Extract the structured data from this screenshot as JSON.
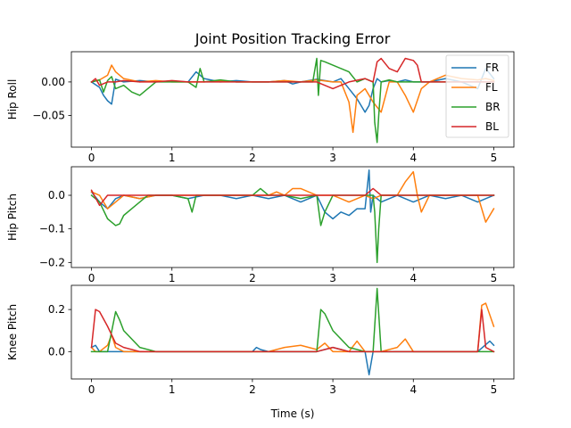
{
  "chart_data": {
    "type": "line",
    "title": "Joint Position Tracking Error",
    "xlabel": "Time (s)",
    "xlim": [
      -0.25,
      5.25
    ],
    "xticks": [
      0,
      1,
      2,
      3,
      4,
      5
    ],
    "legend_position": "top-right",
    "grid": false,
    "series_styles": [
      {
        "name": "FR",
        "color": "#1f77b4"
      },
      {
        "name": "FL",
        "color": "#ff7f0e"
      },
      {
        "name": "BR",
        "color": "#2ca02c"
      },
      {
        "name": "BL",
        "color": "#d62728"
      }
    ],
    "panels": [
      {
        "ylabel": "Hip Roll",
        "ylim": [
          -0.097,
          0.045
        ],
        "yticks": [
          0.0,
          -0.05
        ],
        "ytick_labels": [
          "0.00",
          "−0.05"
        ],
        "show_legend": true,
        "series": [
          {
            "name": "FR",
            "x": [
              0,
              0.1,
              0.15,
              0.2,
              0.25,
              0.3,
              0.4,
              0.6,
              0.8,
              1.0,
              1.2,
              1.3,
              1.4,
              1.6,
              1.8,
              2.0,
              2.2,
              2.4,
              2.5,
              2.6,
              2.8,
              3.0,
              3.1,
              3.2,
              3.3,
              3.35,
              3.4,
              3.45,
              3.5,
              3.55,
              3.6,
              3.7,
              3.8,
              3.9,
              4.0,
              4.2,
              4.4,
              4.6,
              4.8,
              4.9,
              5.0
            ],
            "y": [
              0.0,
              -0.008,
              -0.02,
              -0.028,
              -0.033,
              0.004,
              0.0,
              0.002,
              0.0,
              0.001,
              0.0,
              0.015,
              0.005,
              0.0,
              0.002,
              0.0,
              0.0,
              0.002,
              -0.003,
              0.0,
              0.004,
              0.0,
              0.005,
              -0.01,
              -0.025,
              -0.035,
              -0.045,
              -0.035,
              -0.01,
              0.005,
              0.0,
              0.002,
              0.0,
              0.003,
              0.0,
              0.0,
              0.005,
              0.0,
              -0.01,
              0.02,
              0.005
            ]
          },
          {
            "name": "FL",
            "x": [
              0,
              0.1,
              0.2,
              0.25,
              0.3,
              0.4,
              0.6,
              0.8,
              1.0,
              1.2,
              1.4,
              1.6,
              1.8,
              2.0,
              2.2,
              2.4,
              2.6,
              2.8,
              3.0,
              3.1,
              3.2,
              3.25,
              3.3,
              3.4,
              3.5,
              3.6,
              3.7,
              3.8,
              3.9,
              4.0,
              4.1,
              4.2,
              4.4,
              4.6,
              4.8,
              4.9,
              5.0
            ],
            "y": [
              0.0,
              0.003,
              0.01,
              0.025,
              0.015,
              0.005,
              0.0,
              0.002,
              0.0,
              0.0,
              0.0,
              0.002,
              0.0,
              0.0,
              0.0,
              0.002,
              0.0,
              0.003,
              0.0,
              0.0,
              -0.03,
              -0.075,
              -0.02,
              -0.01,
              -0.03,
              -0.045,
              0.0,
              0.0,
              -0.02,
              -0.045,
              -0.01,
              0.0,
              0.01,
              0.005,
              0.003,
              0.005,
              0.002
            ]
          },
          {
            "name": "BR",
            "x": [
              0,
              0.1,
              0.15,
              0.2,
              0.25,
              0.3,
              0.4,
              0.5,
              0.6,
              0.8,
              1.0,
              1.2,
              1.3,
              1.35,
              1.4,
              1.6,
              1.8,
              2.0,
              2.2,
              2.4,
              2.6,
              2.75,
              2.8,
              2.82,
              2.85,
              2.9,
              3.0,
              3.1,
              3.2,
              3.3,
              3.4,
              3.5,
              3.52,
              3.55,
              3.57,
              3.6,
              3.7,
              3.8,
              4.0,
              4.2,
              4.4,
              4.6,
              4.8,
              5.0
            ],
            "y": [
              0.0,
              0.003,
              -0.015,
              0.002,
              0.008,
              -0.01,
              -0.005,
              -0.015,
              -0.02,
              0.0,
              0.0,
              0.0,
              -0.008,
              0.02,
              0.0,
              0.003,
              0.0,
              0.0,
              0.0,
              0.0,
              0.0,
              0.0,
              0.035,
              -0.02,
              0.032,
              0.03,
              0.025,
              0.02,
              0.015,
              0.0,
              0.005,
              0.0,
              -0.06,
              -0.09,
              -0.05,
              0.0,
              0.003,
              0.0,
              0.0,
              0.0,
              0.0,
              0.0,
              0.0,
              0.0
            ]
          },
          {
            "name": "BL",
            "x": [
              0,
              0.05,
              0.1,
              0.2,
              0.3,
              0.4,
              0.6,
              0.8,
              1.0,
              1.2,
              1.4,
              1.6,
              1.8,
              2.0,
              2.2,
              2.4,
              2.6,
              2.8,
              3.0,
              3.2,
              3.4,
              3.5,
              3.55,
              3.6,
              3.7,
              3.8,
              3.9,
              4.0,
              4.05,
              4.1,
              4.2,
              4.4,
              4.6,
              4.8,
              5.0
            ],
            "y": [
              0.0,
              0.005,
              -0.005,
              0.0,
              0.0,
              0.002,
              0.0,
              0.0,
              0.002,
              0.0,
              0.0,
              0.0,
              0.0,
              0.0,
              0.0,
              0.0,
              0.0,
              0.0,
              -0.01,
              0.0,
              0.005,
              0.0,
              0.03,
              0.035,
              0.02,
              0.015,
              0.035,
              0.032,
              0.025,
              0.0,
              0.0,
              0.0,
              0.0,
              0.0,
              0.0
            ]
          }
        ]
      },
      {
        "ylabel": "Hip Pitch",
        "ylim": [
          -0.215,
          0.085
        ],
        "yticks": [
          0.0,
          -0.1,
          -0.2
        ],
        "ytick_labels": [
          "0.0",
          "−0.1",
          "−0.2"
        ],
        "show_legend": false,
        "series": [
          {
            "name": "FR",
            "x": [
              0,
              0.1,
              0.2,
              0.3,
              0.4,
              0.6,
              0.8,
              1.0,
              1.2,
              1.4,
              1.6,
              1.8,
              2.0,
              2.2,
              2.4,
              2.6,
              2.8,
              2.9,
              3.0,
              3.1,
              3.2,
              3.3,
              3.4,
              3.45,
              3.47,
              3.5,
              3.6,
              3.8,
              4.0,
              4.2,
              4.4,
              4.6,
              4.8,
              5.0
            ],
            "y": [
              0.01,
              -0.02,
              -0.04,
              -0.01,
              0.0,
              -0.01,
              0.0,
              0.0,
              -0.01,
              0.0,
              0.0,
              -0.01,
              0.0,
              -0.01,
              0.0,
              -0.02,
              0.0,
              -0.05,
              -0.07,
              -0.05,
              -0.06,
              -0.04,
              -0.04,
              0.075,
              -0.05,
              0.0,
              -0.02,
              0.0,
              -0.02,
              0.0,
              -0.01,
              0.0,
              -0.02,
              0.0
            ]
          },
          {
            "name": "FL",
            "x": [
              0,
              0.1,
              0.2,
              0.3,
              0.4,
              0.6,
              0.8,
              1.0,
              1.2,
              1.4,
              1.6,
              1.8,
              2.0,
              2.2,
              2.3,
              2.4,
              2.5,
              2.6,
              2.8,
              3.0,
              3.2,
              3.4,
              3.5,
              3.6,
              3.8,
              3.9,
              4.0,
              4.05,
              4.1,
              4.2,
              4.4,
              4.6,
              4.8,
              4.9,
              5.0
            ],
            "y": [
              0.01,
              0.0,
              -0.04,
              -0.02,
              0.0,
              -0.01,
              0.0,
              0.0,
              0.0,
              0.0,
              0.0,
              0.0,
              0.0,
              0.0,
              0.01,
              0.0,
              0.02,
              0.02,
              0.0,
              0.0,
              -0.02,
              0.0,
              -0.01,
              0.0,
              0.0,
              0.04,
              0.07,
              0.0,
              -0.05,
              0.0,
              0.0,
              0.0,
              0.0,
              -0.08,
              -0.04
            ]
          },
          {
            "name": "BR",
            "x": [
              0,
              0.1,
              0.2,
              0.3,
              0.35,
              0.4,
              0.5,
              0.6,
              0.7,
              0.8,
              1.0,
              1.2,
              1.25,
              1.3,
              1.4,
              1.6,
              1.8,
              2.0,
              2.1,
              2.2,
              2.4,
              2.6,
              2.8,
              2.85,
              2.9,
              3.0,
              3.2,
              3.4,
              3.5,
              3.52,
              3.55,
              3.57,
              3.6,
              3.8,
              4.0,
              4.2,
              4.4,
              4.6,
              4.8,
              5.0
            ],
            "y": [
              0.0,
              -0.02,
              -0.07,
              -0.09,
              -0.085,
              -0.06,
              -0.04,
              -0.02,
              0.0,
              0.0,
              0.0,
              -0.01,
              -0.05,
              0.0,
              0.0,
              0.0,
              0.0,
              0.0,
              0.02,
              0.0,
              0.0,
              -0.01,
              0.0,
              -0.09,
              -0.05,
              0.0,
              0.0,
              0.0,
              0.0,
              -0.05,
              -0.2,
              -0.1,
              0.0,
              0.0,
              0.0,
              0.0,
              0.0,
              0.0,
              0.0,
              0.0
            ]
          },
          {
            "name": "BL",
            "x": [
              0,
              0.1,
              0.2,
              0.4,
              0.6,
              0.8,
              1.0,
              1.2,
              1.4,
              1.6,
              1.8,
              2.0,
              2.2,
              2.4,
              2.6,
              2.8,
              3.0,
              3.2,
              3.4,
              3.5,
              3.6,
              3.8,
              4.0,
              4.2,
              4.4,
              4.6,
              4.8,
              5.0
            ],
            "y": [
              0.015,
              -0.03,
              0.0,
              0.0,
              0.0,
              0.0,
              0.0,
              0.0,
              0.0,
              0.0,
              0.0,
              0.0,
              0.0,
              0.0,
              0.0,
              0.0,
              0.0,
              0.0,
              0.0,
              0.02,
              0.0,
              0.0,
              0.0,
              0.0,
              0.0,
              0.0,
              0.0,
              0.0
            ]
          }
        ]
      },
      {
        "ylabel": "Knee Pitch",
        "ylim": [
          -0.13,
          0.315
        ],
        "yticks": [
          0.0,
          0.2
        ],
        "ytick_labels": [
          "0.0",
          "0.2"
        ],
        "show_legend": false,
        "series": [
          {
            "name": "FR",
            "x": [
              0,
              0.05,
              0.1,
              0.2,
              0.4,
              0.6,
              0.8,
              1.0,
              1.2,
              1.4,
              1.6,
              1.8,
              2.0,
              2.05,
              2.1,
              2.2,
              2.4,
              2.6,
              2.8,
              3.0,
              3.2,
              3.4,
              3.45,
              3.5,
              3.6,
              3.8,
              4.0,
              4.2,
              4.4,
              4.6,
              4.8,
              4.95,
              5.0
            ],
            "y": [
              0.02,
              0.03,
              0.0,
              0.0,
              0.0,
              0.0,
              0.0,
              0.0,
              0.0,
              0.0,
              0.0,
              0.0,
              0.0,
              0.02,
              0.01,
              0.0,
              0.0,
              0.0,
              0.0,
              0.02,
              0.0,
              0.0,
              -0.11,
              0.0,
              0.0,
              0.0,
              0.0,
              0.0,
              0.0,
              0.0,
              0.0,
              0.05,
              0.03
            ]
          },
          {
            "name": "FL",
            "x": [
              0,
              0.05,
              0.1,
              0.2,
              0.25,
              0.3,
              0.4,
              0.6,
              0.8,
              1.0,
              1.2,
              1.4,
              1.6,
              1.8,
              2.0,
              2.2,
              2.4,
              2.6,
              2.8,
              2.9,
              3.0,
              3.2,
              3.3,
              3.4,
              3.6,
              3.8,
              3.9,
              4.0,
              4.2,
              4.4,
              4.6,
              4.8,
              4.85,
              4.9,
              5.0
            ],
            "y": [
              0.02,
              0.0,
              0.0,
              0.03,
              0.08,
              0.02,
              0.0,
              0.0,
              0.0,
              0.0,
              0.0,
              0.0,
              0.0,
              0.0,
              0.0,
              0.0,
              0.02,
              0.03,
              0.01,
              0.04,
              0.0,
              0.0,
              0.05,
              0.0,
              0.0,
              0.02,
              0.06,
              0.0,
              0.0,
              0.0,
              0.0,
              0.0,
              0.22,
              0.23,
              0.12
            ]
          },
          {
            "name": "BR",
            "x": [
              0,
              0.1,
              0.2,
              0.3,
              0.35,
              0.4,
              0.6,
              0.8,
              1.0,
              1.2,
              1.4,
              1.6,
              1.8,
              2.0,
              2.2,
              2.4,
              2.6,
              2.8,
              2.85,
              2.9,
              3.0,
              3.2,
              3.4,
              3.5,
              3.55,
              3.6,
              3.8,
              4.0,
              4.2,
              4.4,
              4.6,
              4.8,
              5.0
            ],
            "y": [
              0.0,
              0.0,
              0.0,
              0.19,
              0.15,
              0.1,
              0.02,
              0.0,
              0.0,
              0.0,
              0.0,
              0.0,
              0.0,
              0.0,
              0.0,
              0.0,
              0.0,
              0.0,
              0.2,
              0.18,
              0.1,
              0.02,
              0.0,
              0.0,
              0.3,
              0.0,
              0.0,
              0.0,
              0.0,
              0.0,
              0.0,
              0.0,
              0.0
            ]
          },
          {
            "name": "BL",
            "x": [
              0,
              0.05,
              0.1,
              0.2,
              0.3,
              0.4,
              0.6,
              0.8,
              1.0,
              1.2,
              1.4,
              1.6,
              1.8,
              2.0,
              2.2,
              2.4,
              2.6,
              2.8,
              3.0,
              3.2,
              3.4,
              3.6,
              3.8,
              4.0,
              4.2,
              4.4,
              4.6,
              4.8,
              4.85,
              4.9,
              5.0
            ],
            "y": [
              0.02,
              0.2,
              0.19,
              0.12,
              0.04,
              0.02,
              0.0,
              0.0,
              0.0,
              0.0,
              0.0,
              0.0,
              0.0,
              0.0,
              0.0,
              0.0,
              0.0,
              0.0,
              0.02,
              0.0,
              0.0,
              0.0,
              0.0,
              0.0,
              0.0,
              0.0,
              0.0,
              0.0,
              0.2,
              0.02,
              0.0
            ]
          }
        ]
      }
    ]
  }
}
